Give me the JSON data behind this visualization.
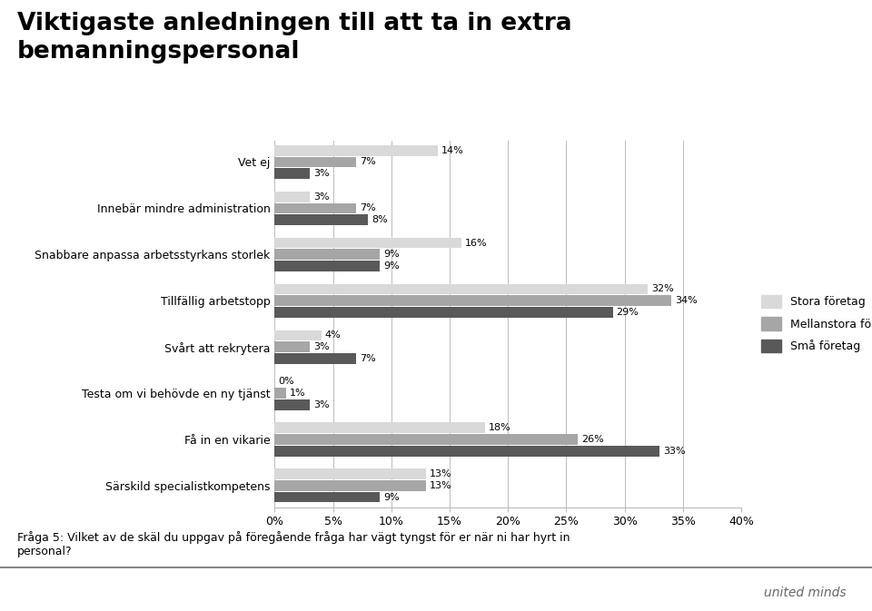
{
  "title": "Viktigaste anledningen till att ta in extra\nbemanningspersonal",
  "categories": [
    "Särskild specialistkompetens",
    "Få in en vikarie",
    "Testa om vi behövde en ny tjänst",
    "Svårt att rekrytera",
    "Tillfällig arbetstopp",
    "Snabbare anpassa arbetsstyrkans storlek",
    "Innebär mindre administration",
    "Vet ej"
  ],
  "stora": [
    13,
    18,
    0,
    4,
    32,
    16,
    3,
    14
  ],
  "mellanstora": [
    13,
    26,
    1,
    3,
    34,
    9,
    7,
    7
  ],
  "sma": [
    9,
    33,
    3,
    7,
    29,
    9,
    8,
    3
  ],
  "colors": {
    "stora": "#d9d9d9",
    "mellanstora": "#a6a6a6",
    "sma": "#595959"
  },
  "legend_labels": [
    "Stora företag",
    "Mellanstora företag",
    "Små företag"
  ],
  "xlabel_ticks": [
    0,
    5,
    10,
    15,
    20,
    25,
    30,
    35,
    40
  ],
  "footer": "Fråga 5: Vilket av de skäl du uppgav på föregående fråga har vägt tyngst för er när ni har hyrt in\npersonal?",
  "watermark": "united minds",
  "background_color": "#ffffff"
}
